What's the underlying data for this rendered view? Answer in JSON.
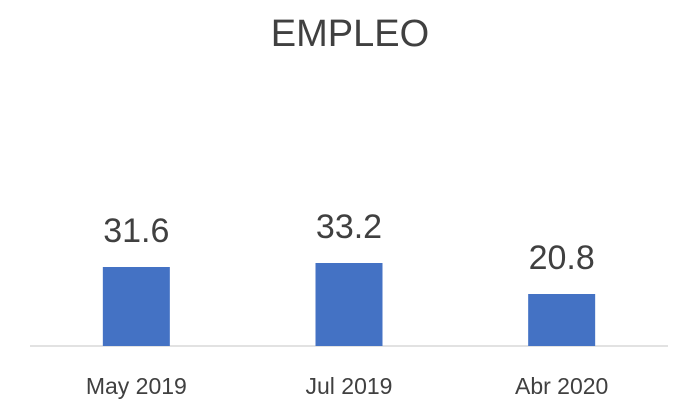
{
  "chart_data": {
    "type": "bar",
    "title": "EMPLEO",
    "categories": [
      "May 2019",
      "Jul 2019",
      "Abr 2020"
    ],
    "values": [
      31.6,
      33.2,
      20.8
    ],
    "color": "#4472c4"
  }
}
